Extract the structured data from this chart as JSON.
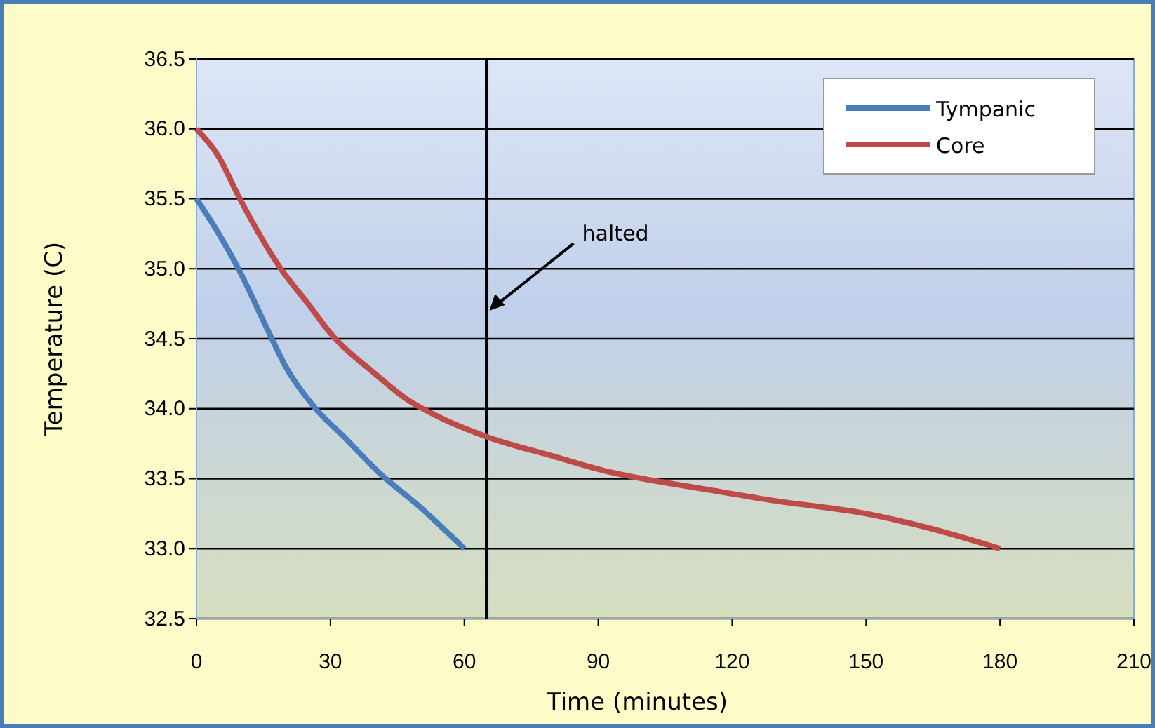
{
  "chart_data": {
    "type": "line",
    "xlabel": "Time (minutes)",
    "ylabel": "Temperature (C)",
    "xlim": [
      0,
      210
    ],
    "xticks": [
      0,
      30,
      60,
      90,
      120,
      150,
      180,
      210
    ],
    "ylim": [
      32.5,
      36.5
    ],
    "yticks": [
      {
        "value": 32.5,
        "label": "32.5"
      },
      {
        "value": 33,
        "label": "33.0"
      },
      {
        "value": 33.5,
        "label": "33.5"
      },
      {
        "value": 34,
        "label": "34.0"
      },
      {
        "value": 34.5,
        "label": "34.5"
      },
      {
        "value": 35,
        "label": "35.0"
      },
      {
        "value": 35.5,
        "label": "35.5"
      },
      {
        "value": 36,
        "label": "36.0"
      },
      {
        "value": 36.5,
        "label": "36.5"
      }
    ],
    "grid": "y",
    "legend": "top right",
    "marker": "none",
    "line_style": "solid",
    "series": [
      {
        "name": "Tympanic",
        "color": "#4a7ebb",
        "x": [
          0,
          5,
          9.4,
          15.7,
          20,
          26.7,
          33,
          41,
          50,
          60
        ],
        "values": [
          35.5,
          35.25,
          35.0,
          34.58,
          34.3,
          34.0,
          33.8,
          33.54,
          33.3,
          33.0
        ]
      },
      {
        "name": "Core",
        "color": "#be4b48",
        "x": [
          0,
          5,
          9.4,
          18.9,
          25,
          30,
          40,
          47,
          55,
          65,
          80,
          91,
          100,
          113,
          130,
          150,
          165,
          180
        ],
        "values": [
          36.0,
          35.8,
          35.52,
          35.0,
          34.75,
          34.54,
          34.25,
          34.07,
          33.93,
          33.8,
          33.66,
          33.56,
          33.5,
          33.43,
          33.34,
          33.25,
          33.14,
          33.0
        ]
      }
    ],
    "ref_lines": [
      {
        "axis": "x",
        "value": 65,
        "label": "halted",
        "color": "#000000"
      }
    ]
  }
}
